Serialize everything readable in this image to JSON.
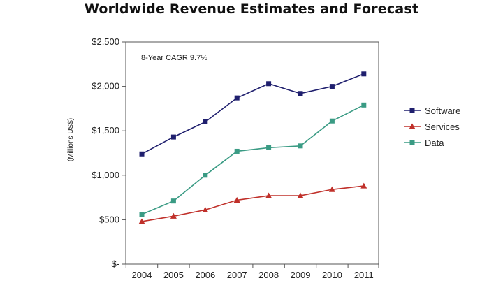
{
  "chart_data": {
    "type": "line",
    "title": "Worldwide Revenue Estimates and Forecast",
    "ylabel": "(Millions US$)",
    "xlabel": "",
    "categories": [
      "2004",
      "2005",
      "2006",
      "2007",
      "2008",
      "2009",
      "2010",
      "2011"
    ],
    "yticks": [
      "$-",
      "$500",
      "$1,000",
      "$1,500",
      "$2,000",
      "$2,500"
    ],
    "ylim": [
      0,
      2500
    ],
    "annotation": "8-Year CAGR 9.7%",
    "legend_position": "right",
    "grid": false,
    "series": [
      {
        "name": "Software",
        "values": [
          1240,
          1430,
          1600,
          1870,
          2030,
          1920,
          2000,
          2140
        ],
        "color": "#1f1f6e",
        "marker": "square"
      },
      {
        "name": "Services",
        "values": [
          480,
          540,
          610,
          720,
          770,
          770,
          840,
          880
        ],
        "color": "#c0302a",
        "marker": "triangle"
      },
      {
        "name": "Data",
        "values": [
          560,
          710,
          1000,
          1270,
          1310,
          1330,
          1610,
          1790
        ],
        "color": "#3a9b84",
        "marker": "square"
      }
    ]
  }
}
